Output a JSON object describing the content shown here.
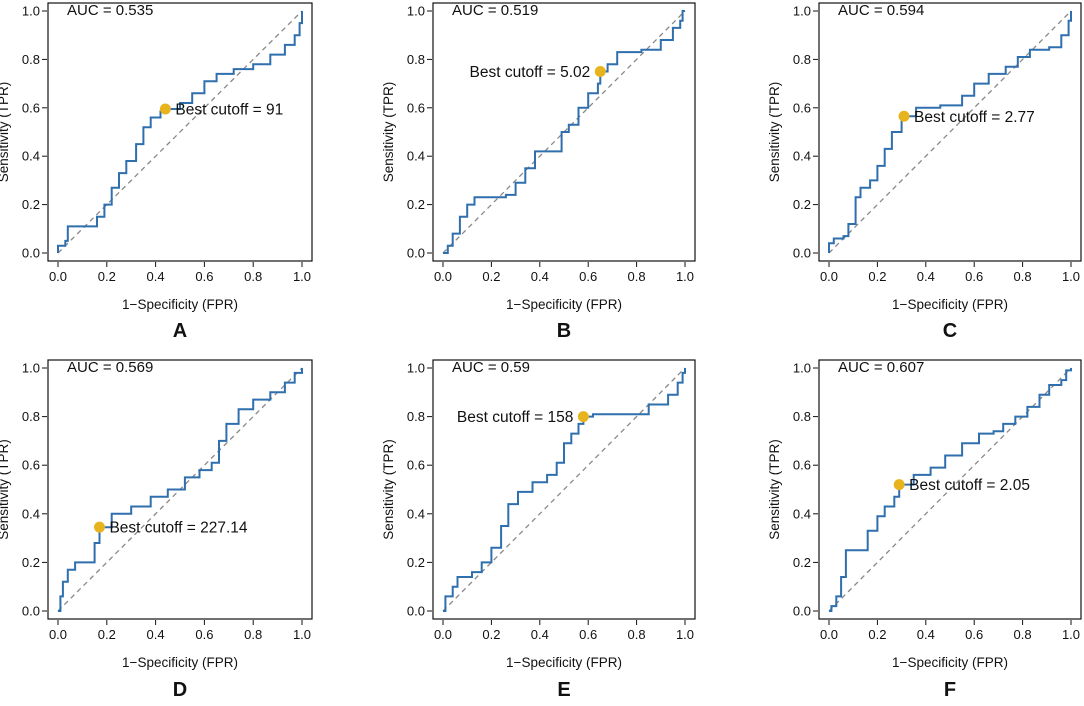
{
  "chart_data": [
    {
      "panel": "A",
      "type": "line",
      "xlabel": "1−Specificity (FPR)",
      "ylabel": "Sensitivity (TPR)",
      "xlim": [
        0,
        1
      ],
      "ylim": [
        0,
        1
      ],
      "x_ticks": [
        "0.0",
        "0.2",
        "0.4",
        "0.6",
        "0.8",
        "1.0"
      ],
      "y_ticks": [
        "0.0",
        "0.2",
        "0.4",
        "0.6",
        "0.8",
        "1.0"
      ],
      "auc_label": "AUC = 0.535",
      "cutoff_label": "Best cutoff = 91",
      "cutoff_point": [
        0.44,
        0.595
      ],
      "cutoff_label_side": "right",
      "colors": {
        "roc": "#2f6fae",
        "cutoff": "#e8b41e",
        "diagonal": "#888888"
      },
      "roc_points": [
        [
          0,
          0
        ],
        [
          0,
          0.03
        ],
        [
          0.03,
          0.05
        ],
        [
          0.04,
          0.11
        ],
        [
          0.13,
          0.11
        ],
        [
          0.16,
          0.15
        ],
        [
          0.19,
          0.2
        ],
        [
          0.22,
          0.27
        ],
        [
          0.25,
          0.33
        ],
        [
          0.28,
          0.38
        ],
        [
          0.32,
          0.45
        ],
        [
          0.35,
          0.52
        ],
        [
          0.38,
          0.56
        ],
        [
          0.42,
          0.585
        ],
        [
          0.44,
          0.595
        ],
        [
          0.5,
          0.62
        ],
        [
          0.55,
          0.66
        ],
        [
          0.6,
          0.71
        ],
        [
          0.65,
          0.74
        ],
        [
          0.72,
          0.76
        ],
        [
          0.8,
          0.78
        ],
        [
          0.87,
          0.82
        ],
        [
          0.93,
          0.86
        ],
        [
          0.97,
          0.9
        ],
        [
          0.99,
          0.95
        ],
        [
          1,
          1
        ]
      ]
    },
    {
      "panel": "B",
      "type": "line",
      "xlabel": "1−Specificity (FPR)",
      "ylabel": "Sensitivity (TPR)",
      "xlim": [
        0,
        1
      ],
      "ylim": [
        0,
        1
      ],
      "x_ticks": [
        "0.0",
        "0.2",
        "0.4",
        "0.6",
        "0.8",
        "1.0"
      ],
      "y_ticks": [
        "0.0",
        "0.2",
        "0.4",
        "0.6",
        "0.8",
        "1.0"
      ],
      "auc_label": "AUC = 0.519",
      "cutoff_label": "Best cutoff = 5.02",
      "cutoff_point": [
        0.65,
        0.75
      ],
      "cutoff_label_side": "left",
      "colors": {
        "roc": "#2f6fae",
        "cutoff": "#e8b41e",
        "diagonal": "#888888"
      },
      "roc_points": [
        [
          0,
          0
        ],
        [
          0.02,
          0.03
        ],
        [
          0.04,
          0.08
        ],
        [
          0.07,
          0.15
        ],
        [
          0.1,
          0.2
        ],
        [
          0.13,
          0.23
        ],
        [
          0.2,
          0.23
        ],
        [
          0.26,
          0.24
        ],
        [
          0.3,
          0.29
        ],
        [
          0.34,
          0.35
        ],
        [
          0.38,
          0.42
        ],
        [
          0.46,
          0.42
        ],
        [
          0.49,
          0.5
        ],
        [
          0.52,
          0.53
        ],
        [
          0.56,
          0.6
        ],
        [
          0.6,
          0.66
        ],
        [
          0.64,
          0.7
        ],
        [
          0.65,
          0.75
        ],
        [
          0.68,
          0.78
        ],
        [
          0.72,
          0.83
        ],
        [
          0.82,
          0.84
        ],
        [
          0.9,
          0.88
        ],
        [
          0.95,
          0.93
        ],
        [
          0.98,
          0.96
        ],
        [
          0.99,
          1
        ],
        [
          1,
          1
        ]
      ]
    },
    {
      "panel": "C",
      "type": "line",
      "xlabel": "1−Specificity (FPR)",
      "ylabel": "Sensitivity (TPR)",
      "xlim": [
        0,
        1
      ],
      "ylim": [
        0,
        1
      ],
      "x_ticks": [
        "0.0",
        "0.2",
        "0.4",
        "0.6",
        "0.8",
        "1.0"
      ],
      "y_ticks": [
        "0.0",
        "0.2",
        "0.4",
        "0.6",
        "0.8",
        "1.0"
      ],
      "auc_label": "AUC = 0.594",
      "cutoff_label": "Best cutoff = 2.77",
      "cutoff_point": [
        0.31,
        0.565
      ],
      "cutoff_label_side": "right",
      "colors": {
        "roc": "#2f6fae",
        "cutoff": "#e8b41e",
        "diagonal": "#888888"
      },
      "roc_points": [
        [
          0,
          0
        ],
        [
          0,
          0.04
        ],
        [
          0.02,
          0.06
        ],
        [
          0.06,
          0.07
        ],
        [
          0.08,
          0.12
        ],
        [
          0.11,
          0.23
        ],
        [
          0.13,
          0.27
        ],
        [
          0.17,
          0.3
        ],
        [
          0.2,
          0.36
        ],
        [
          0.23,
          0.43
        ],
        [
          0.26,
          0.5
        ],
        [
          0.3,
          0.555
        ],
        [
          0.31,
          0.565
        ],
        [
          0.36,
          0.6
        ],
        [
          0.46,
          0.61
        ],
        [
          0.55,
          0.65
        ],
        [
          0.6,
          0.7
        ],
        [
          0.66,
          0.74
        ],
        [
          0.73,
          0.77
        ],
        [
          0.78,
          0.81
        ],
        [
          0.83,
          0.84
        ],
        [
          0.91,
          0.85
        ],
        [
          0.96,
          0.9
        ],
        [
          0.99,
          0.96
        ],
        [
          1,
          1
        ]
      ]
    },
    {
      "panel": "D",
      "type": "line",
      "xlabel": "1−Specificity (FPR)",
      "ylabel": "Sensitivity (TPR)",
      "xlim": [
        0,
        1
      ],
      "ylim": [
        0,
        1
      ],
      "x_ticks": [
        "0.0",
        "0.2",
        "0.4",
        "0.6",
        "0.8",
        "1.0"
      ],
      "y_ticks": [
        "0.0",
        "0.2",
        "0.4",
        "0.6",
        "0.8",
        "1.0"
      ],
      "auc_label": "AUC = 0.569",
      "cutoff_label": "Best cutoff = 227.14",
      "cutoff_point": [
        0.17,
        0.345
      ],
      "cutoff_label_side": "right",
      "colors": {
        "roc": "#2f6fae",
        "cutoff": "#e8b41e",
        "diagonal": "#888888"
      },
      "roc_points": [
        [
          0,
          0
        ],
        [
          0.01,
          0.06
        ],
        [
          0.02,
          0.12
        ],
        [
          0.04,
          0.17
        ],
        [
          0.07,
          0.2
        ],
        [
          0.12,
          0.2
        ],
        [
          0.15,
          0.28
        ],
        [
          0.17,
          0.345
        ],
        [
          0.22,
          0.4
        ],
        [
          0.3,
          0.43
        ],
        [
          0.38,
          0.47
        ],
        [
          0.45,
          0.5
        ],
        [
          0.52,
          0.55
        ],
        [
          0.58,
          0.58
        ],
        [
          0.63,
          0.61
        ],
        [
          0.66,
          0.7
        ],
        [
          0.69,
          0.77
        ],
        [
          0.74,
          0.83
        ],
        [
          0.8,
          0.87
        ],
        [
          0.87,
          0.9
        ],
        [
          0.93,
          0.94
        ],
        [
          0.97,
          0.98
        ],
        [
          1,
          1
        ]
      ]
    },
    {
      "panel": "E",
      "type": "line",
      "xlabel": "1−Specificity (FPR)",
      "ylabel": "Sensitivity (TPR)",
      "xlim": [
        0,
        1
      ],
      "ylim": [
        0,
        1
      ],
      "x_ticks": [
        "0.0",
        "0.2",
        "0.4",
        "0.6",
        "0.8",
        "1.0"
      ],
      "y_ticks": [
        "0.0",
        "0.2",
        "0.4",
        "0.6",
        "0.8",
        "1.0"
      ],
      "auc_label": "AUC = 0.59",
      "cutoff_label": "Best cutoff = 158",
      "cutoff_point": [
        0.58,
        0.8
      ],
      "cutoff_label_side": "left",
      "colors": {
        "roc": "#2f6fae",
        "cutoff": "#e8b41e",
        "diagonal": "#888888"
      },
      "roc_points": [
        [
          0,
          0
        ],
        [
          0.01,
          0.06
        ],
        [
          0.04,
          0.1
        ],
        [
          0.06,
          0.14
        ],
        [
          0.12,
          0.16
        ],
        [
          0.16,
          0.2
        ],
        [
          0.2,
          0.26
        ],
        [
          0.24,
          0.35
        ],
        [
          0.27,
          0.44
        ],
        [
          0.31,
          0.49
        ],
        [
          0.37,
          0.53
        ],
        [
          0.43,
          0.56
        ],
        [
          0.47,
          0.61
        ],
        [
          0.5,
          0.69
        ],
        [
          0.53,
          0.73
        ],
        [
          0.56,
          0.77
        ],
        [
          0.58,
          0.8
        ],
        [
          0.62,
          0.81
        ],
        [
          0.8,
          0.81
        ],
        [
          0.85,
          0.85
        ],
        [
          0.93,
          0.89
        ],
        [
          0.97,
          0.94
        ],
        [
          0.99,
          0.98
        ],
        [
          1,
          1
        ]
      ]
    },
    {
      "panel": "F",
      "type": "line",
      "xlabel": "1−Specificity (FPR)",
      "ylabel": "Sensitivity (TPR)",
      "xlim": [
        0,
        1
      ],
      "ylim": [
        0,
        1
      ],
      "x_ticks": [
        "0.0",
        "0.2",
        "0.4",
        "0.6",
        "0.8",
        "1.0"
      ],
      "y_ticks": [
        "0.0",
        "0.2",
        "0.4",
        "0.6",
        "0.8",
        "1.0"
      ],
      "auc_label": "AUC = 0.607",
      "cutoff_label": "Best cutoff = 2.05",
      "cutoff_point": [
        0.29,
        0.52
      ],
      "cutoff_label_side": "right",
      "colors": {
        "roc": "#2f6fae",
        "cutoff": "#e8b41e",
        "diagonal": "#888888"
      },
      "roc_points": [
        [
          0,
          0
        ],
        [
          0.01,
          0.02
        ],
        [
          0.03,
          0.06
        ],
        [
          0.05,
          0.14
        ],
        [
          0.07,
          0.25
        ],
        [
          0.13,
          0.25
        ],
        [
          0.16,
          0.33
        ],
        [
          0.2,
          0.39
        ],
        [
          0.23,
          0.43
        ],
        [
          0.27,
          0.47
        ],
        [
          0.29,
          0.52
        ],
        [
          0.35,
          0.56
        ],
        [
          0.42,
          0.59
        ],
        [
          0.48,
          0.64
        ],
        [
          0.55,
          0.69
        ],
        [
          0.62,
          0.73
        ],
        [
          0.68,
          0.74
        ],
        [
          0.72,
          0.77
        ],
        [
          0.77,
          0.8
        ],
        [
          0.82,
          0.84
        ],
        [
          0.87,
          0.89
        ],
        [
          0.91,
          0.93
        ],
        [
          0.96,
          0.95
        ],
        [
          0.98,
          0.99
        ],
        [
          1,
          1
        ]
      ]
    }
  ]
}
